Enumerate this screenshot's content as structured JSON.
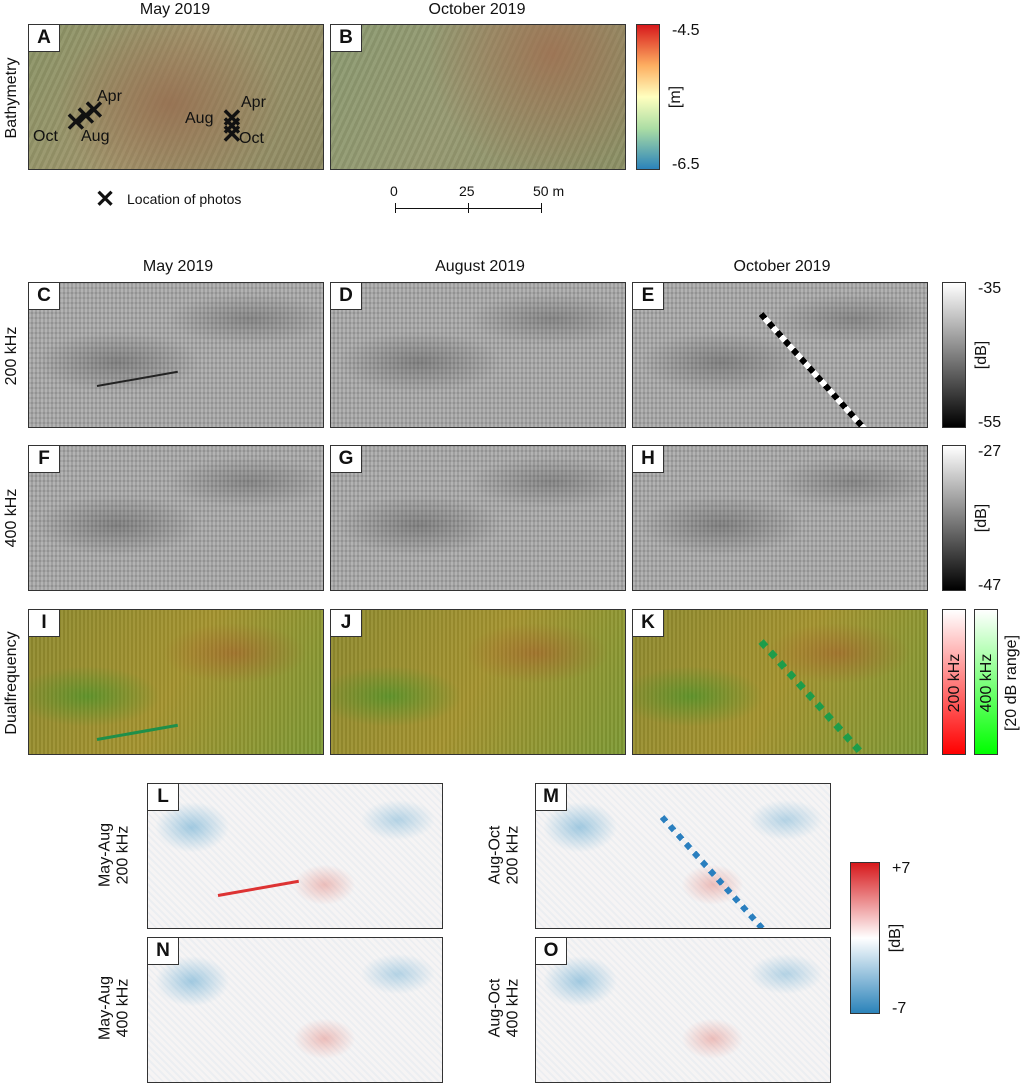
{
  "bathymetry_section": {
    "row_label": "Bathymetry",
    "col_titles": [
      "May 2019",
      "October 2019"
    ],
    "panels": [
      "A",
      "B"
    ],
    "markers_a": {
      "left_group": [
        "Apr",
        "Oct",
        "Aug"
      ],
      "right_group": [
        "Apr",
        "Aug",
        "Oct"
      ]
    },
    "colorbar": {
      "max": "-4.5",
      "min": "-6.5",
      "unit": "[m]"
    },
    "legend_symbol": "✕",
    "legend_text": "Location of photos",
    "scalebar": {
      "ticks": [
        "0",
        "25",
        "50 m"
      ]
    }
  },
  "backscatter_section": {
    "col_titles": [
      "May 2019",
      "August 2019",
      "October 2019"
    ],
    "rows": [
      {
        "label": "200 kHz",
        "panels": [
          "C",
          "D",
          "E"
        ],
        "colorbar": {
          "max": "-35",
          "min": "-55",
          "unit": "[dB]"
        }
      },
      {
        "label": "400 kHz",
        "panels": [
          "F",
          "G",
          "H"
        ],
        "colorbar": {
          "max": "-27",
          "min": "-47",
          "unit": "[dB]"
        }
      },
      {
        "label": "Dualfrequency",
        "panels": [
          "I",
          "J",
          "K"
        ],
        "colorbar": {
          "label_200": "200 kHz",
          "label_400": "400 kHz",
          "unit": "[20 dB range]"
        }
      }
    ]
  },
  "difference_section": {
    "panels": [
      {
        "letter": "L",
        "label_line1": "May-Aug",
        "label_line2": "200 kHz"
      },
      {
        "letter": "M",
        "label_line1": "Aug-Oct",
        "label_line2": "200 kHz"
      },
      {
        "letter": "N",
        "label_line1": "May-Aug",
        "label_line2": "400 kHz"
      },
      {
        "letter": "O",
        "label_line1": "Aug-Oct",
        "label_line2": "400 kHz"
      }
    ],
    "colorbar": {
      "max": "+7",
      "min": "-7",
      "unit": "[dB]"
    }
  },
  "colors": {
    "bathy_scale": [
      "#d7191c",
      "#fdae61",
      "#ffffbf",
      "#abdda4",
      "#2b83ba"
    ],
    "gray_scale": [
      "#ffffff",
      "#000000"
    ],
    "diff_scale": [
      "#d7191c",
      "#ffffff",
      "#2b83ba"
    ],
    "red_channel": "#ff0000",
    "green_channel": "#00ff00"
  }
}
